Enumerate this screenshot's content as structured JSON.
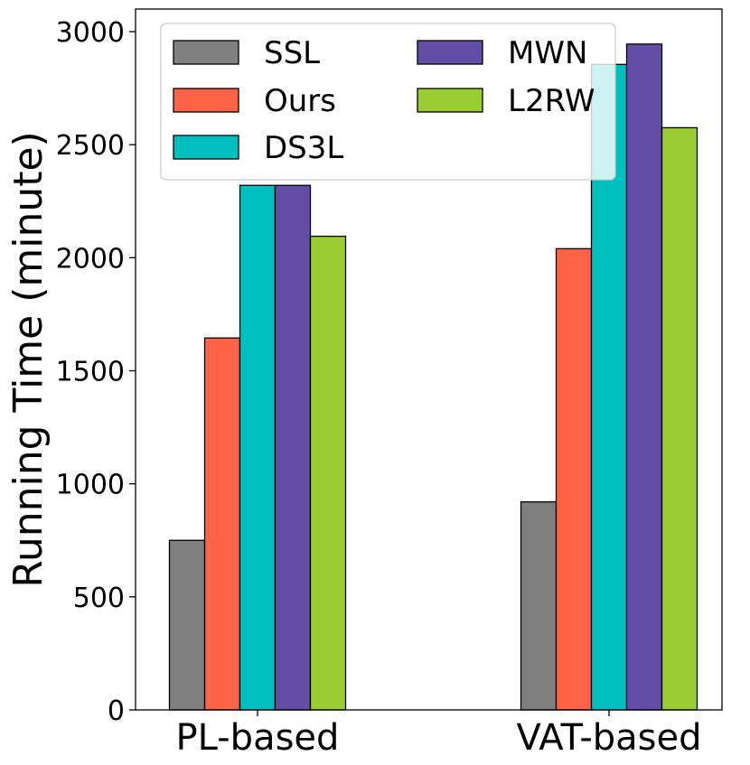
{
  "chart_data": {
    "type": "bar",
    "title": "",
    "xlabel": "",
    "ylabel": "Running Time (minute)",
    "ylim": [
      0,
      3100
    ],
    "yticks": [
      0,
      500,
      1000,
      1500,
      2000,
      2500,
      3000
    ],
    "categories": [
      "PL-based",
      "VAT-based"
    ],
    "grid": false,
    "legend": {
      "placement": "top-left",
      "columns": 2
    },
    "series": [
      {
        "name": "SSL",
        "color": "#808080",
        "values": [
          750,
          920
        ]
      },
      {
        "name": "Ours",
        "color": "#FF6347",
        "values": [
          1645,
          2040
        ]
      },
      {
        "name": "DS3L",
        "color": "#00BFBF",
        "values": [
          2320,
          2855
        ]
      },
      {
        "name": "MWN",
        "color": "#624EA6",
        "values": [
          2320,
          2945
        ]
      },
      {
        "name": "L2RW",
        "color": "#9ACD32",
        "values": [
          2095,
          2575
        ]
      }
    ]
  }
}
